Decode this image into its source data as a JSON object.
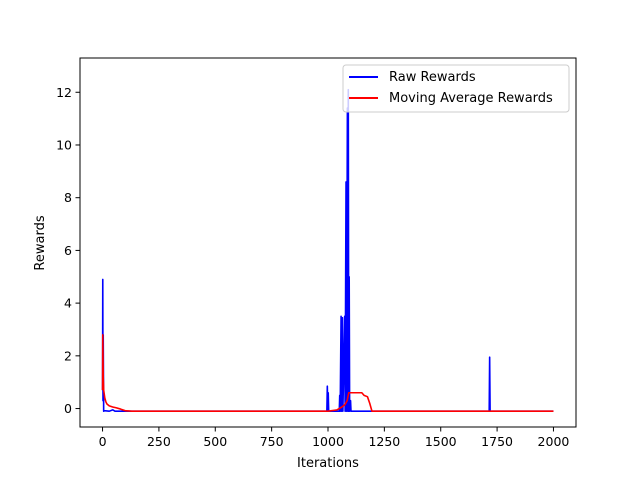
{
  "chart_data": {
    "type": "line",
    "title": "",
    "xlabel": "Iterations",
    "ylabel": "Rewards",
    "xlim": [
      -100,
      2100
    ],
    "ylim": [
      -0.7,
      13.3
    ],
    "xticks": [
      0,
      250,
      500,
      750,
      1000,
      1250,
      1500,
      1750,
      2000
    ],
    "yticks": [
      0,
      2,
      4,
      6,
      8,
      10,
      12
    ],
    "grid": false,
    "legend_position": "top-right",
    "series": [
      {
        "name": "Raw Rewards",
        "color": "#0000ff",
        "points": [
          [
            0,
            0.7
          ],
          [
            1,
            4.9
          ],
          [
            2,
            0.3
          ],
          [
            3,
            2.8
          ],
          [
            5,
            -0.1
          ],
          [
            8,
            -0.08
          ],
          [
            30,
            -0.1
          ],
          [
            45,
            -0.05
          ],
          [
            55,
            -0.1
          ],
          [
            995,
            -0.1
          ],
          [
            997,
            0.85
          ],
          [
            999,
            -0.1
          ],
          [
            1001,
            0.6
          ],
          [
            1003,
            -0.1
          ],
          [
            1050,
            -0.1
          ],
          [
            1052,
            0.5
          ],
          [
            1054,
            -0.1
          ],
          [
            1058,
            3.5
          ],
          [
            1060,
            -0.1
          ],
          [
            1064,
            3.45
          ],
          [
            1066,
            -0.1
          ],
          [
            1074,
            3.5
          ],
          [
            1076,
            -0.1
          ],
          [
            1080,
            8.6
          ],
          [
            1082,
            -0.1
          ],
          [
            1086,
            11.4
          ],
          [
            1088,
            -0.1
          ],
          [
            1090,
            12.1
          ],
          [
            1092,
            -0.1
          ],
          [
            1094,
            5.0
          ],
          [
            1096,
            -0.1
          ],
          [
            1100,
            0.3
          ],
          [
            1102,
            -0.1
          ],
          [
            1715,
            -0.1
          ],
          [
            1717,
            1.95
          ],
          [
            1719,
            -0.1
          ],
          [
            2000,
            -0.1
          ]
        ]
      },
      {
        "name": "Moving Average Rewards",
        "color": "#ff0000",
        "points": [
          [
            0,
            0.7
          ],
          [
            1,
            2.8
          ],
          [
            3,
            1.2
          ],
          [
            5,
            0.7
          ],
          [
            10,
            0.4
          ],
          [
            15,
            0.25
          ],
          [
            20,
            0.17
          ],
          [
            30,
            0.1
          ],
          [
            45,
            0.06
          ],
          [
            60,
            0.03
          ],
          [
            80,
            -0.02
          ],
          [
            100,
            -0.08
          ],
          [
            130,
            -0.1
          ],
          [
            1000,
            -0.1
          ],
          [
            1040,
            -0.05
          ],
          [
            1060,
            0.05
          ],
          [
            1075,
            0.15
          ],
          [
            1085,
            0.3
          ],
          [
            1092,
            0.6
          ],
          [
            1100,
            0.6
          ],
          [
            1150,
            0.6
          ],
          [
            1160,
            0.5
          ],
          [
            1175,
            0.45
          ],
          [
            1185,
            0.2
          ],
          [
            1195,
            -0.1
          ],
          [
            2000,
            -0.1
          ]
        ]
      }
    ]
  }
}
